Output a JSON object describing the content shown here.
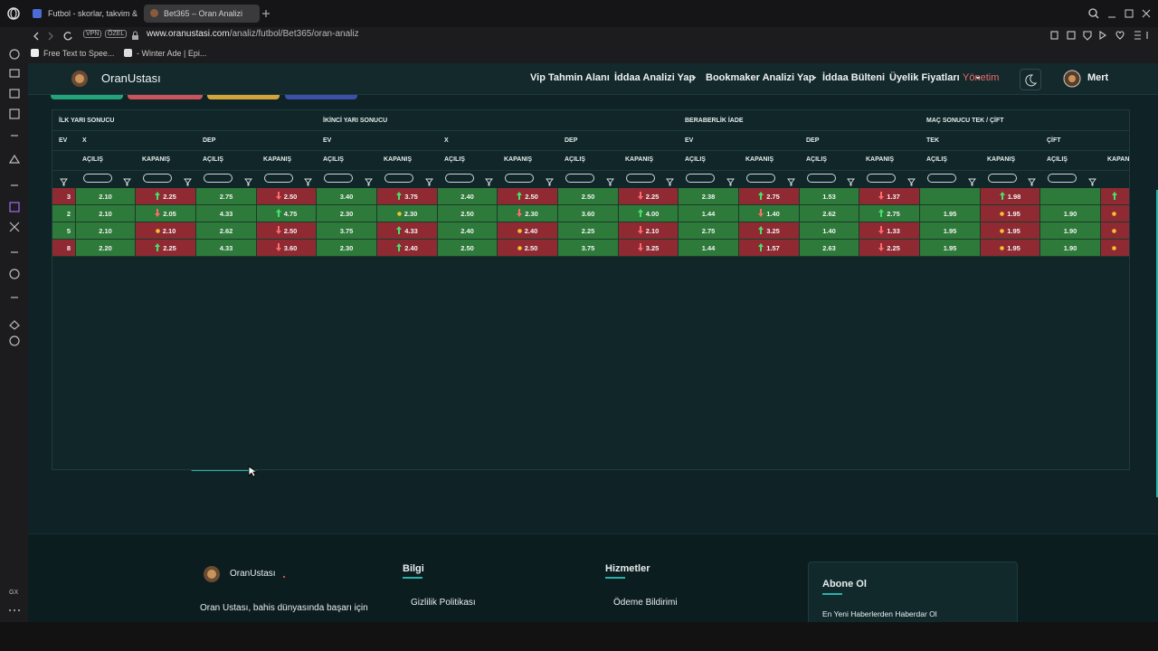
{
  "browser": {
    "tabs": [
      "Futbol - skorlar, takvim &",
      "Bet365 – Oran Analizi"
    ],
    "vpn": "VPN",
    "private": "ÖZEL",
    "url_host": "www.oranustasi.com",
    "url_path": "/analiz/futbol/Bet365/oran-analiz",
    "bookmarks": [
      "Free Text to Spee...",
      "- Winter Ade | Epi..."
    ],
    "sidebar_label": "GX"
  },
  "nav": {
    "brand": "OranUstası",
    "links": [
      "Vip Tahmin Alanı",
      "İddaa Analizi Yap",
      "Bookmaker Analizi Yap",
      "İddaa Bülteni",
      "Üyelik Fiyatları",
      "Yönetim"
    ],
    "user": "Mert"
  },
  "table": {
    "groups": [
      "İLK YARI SONUCU",
      "İKİNCİ YARI SONUCU",
      "BERABERLİK İADE",
      "MAÇ SONUCU TEK / ÇİFT"
    ],
    "subgroups": [
      "EV",
      "X",
      "DEP",
      "EV",
      "X",
      "DEP",
      "EV",
      "DEP",
      "TEK",
      "ÇİFT"
    ],
    "column_labels": [
      "AÇILIŞ",
      "KAPANIŞ",
      "AÇILIŞ",
      "KAPANIŞ",
      "AÇILIŞ",
      "KAPANIŞ",
      "AÇILIŞ",
      "KAPANIŞ",
      "AÇILIŞ",
      "KAPANIŞ",
      "AÇILIŞ",
      "KAPANIŞ",
      "AÇILIŞ",
      "KAPANIŞ",
      "AÇILIŞ",
      "KAPANIŞ",
      "AÇILIŞ",
      "KAPANIŞ"
    ],
    "rows": [
      [
        {
          "text": "3",
          "tone": "red"
        },
        {
          "text": "2.10",
          "tone": "green"
        },
        {
          "text": "2.25",
          "trend": "up",
          "tone": "red"
        },
        {
          "text": "2.75",
          "tone": "green"
        },
        {
          "text": "2.50",
          "trend": "down",
          "tone": "red"
        },
        {
          "text": "3.40",
          "tone": "green"
        },
        {
          "text": "3.75",
          "trend": "up",
          "tone": "red"
        },
        {
          "text": "2.40",
          "tone": "green"
        },
        {
          "text": "2.50",
          "trend": "up",
          "tone": "red"
        },
        {
          "text": "2.50",
          "tone": "green"
        },
        {
          "text": "2.25",
          "trend": "down",
          "tone": "red"
        },
        {
          "text": "2.38",
          "tone": "green"
        },
        {
          "text": "2.75",
          "trend": "up",
          "tone": "red"
        },
        {
          "text": "1.53",
          "tone": "green"
        },
        {
          "text": "1.37",
          "trend": "down",
          "tone": "red"
        },
        {
          "tone": "green"
        },
        {
          "text": "1.98",
          "trend": "up",
          "tone": "red"
        },
        {
          "tone": "green"
        },
        {
          "trend": "up",
          "tone": "red"
        }
      ],
      [
        {
          "text": "2",
          "tone": "green"
        },
        {
          "text": "2.10",
          "tone": "green"
        },
        {
          "text": "2.05",
          "trend": "down",
          "tone": "green"
        },
        {
          "text": "4.33",
          "tone": "green"
        },
        {
          "text": "4.75",
          "trend": "up",
          "tone": "green"
        },
        {
          "text": "2.30",
          "tone": "green"
        },
        {
          "text": "2.30",
          "trend": "flat",
          "tone": "green"
        },
        {
          "text": "2.50",
          "tone": "green"
        },
        {
          "text": "2.30",
          "trend": "down",
          "tone": "green"
        },
        {
          "text": "3.60",
          "tone": "green"
        },
        {
          "text": "4.00",
          "trend": "up",
          "tone": "green"
        },
        {
          "text": "1.44",
          "tone": "green"
        },
        {
          "text": "1.40",
          "trend": "down",
          "tone": "green"
        },
        {
          "text": "2.62",
          "tone": "green"
        },
        {
          "text": "2.75",
          "trend": "up",
          "tone": "green"
        },
        {
          "text": "1.95",
          "tone": "green"
        },
        {
          "text": "1.95",
          "trend": "flat",
          "tone": "red"
        },
        {
          "text": "1.90",
          "tone": "green"
        },
        {
          "trend": "flat",
          "tone": "red"
        }
      ],
      [
        {
          "text": "5",
          "tone": "green"
        },
        {
          "text": "2.10",
          "tone": "green"
        },
        {
          "text": "2.10",
          "trend": "flat",
          "tone": "red"
        },
        {
          "text": "2.62",
          "tone": "green"
        },
        {
          "text": "2.50",
          "trend": "down",
          "tone": "red"
        },
        {
          "text": "3.75",
          "tone": "green"
        },
        {
          "text": "4.33",
          "trend": "up",
          "tone": "red"
        },
        {
          "text": "2.40",
          "tone": "green"
        },
        {
          "text": "2.40",
          "trend": "flat",
          "tone": "red"
        },
        {
          "text": "2.25",
          "tone": "green"
        },
        {
          "text": "2.10",
          "trend": "down",
          "tone": "red"
        },
        {
          "text": "2.75",
          "tone": "green"
        },
        {
          "text": "3.25",
          "trend": "up",
          "tone": "red"
        },
        {
          "text": "1.40",
          "tone": "green"
        },
        {
          "text": "1.33",
          "trend": "down",
          "tone": "red"
        },
        {
          "text": "1.95",
          "tone": "green"
        },
        {
          "text": "1.95",
          "trend": "flat",
          "tone": "red"
        },
        {
          "text": "1.90",
          "tone": "green"
        },
        {
          "trend": "flat",
          "tone": "red"
        }
      ],
      [
        {
          "text": "8",
          "tone": "red"
        },
        {
          "text": "2.20",
          "tone": "green"
        },
        {
          "text": "2.25",
          "trend": "up",
          "tone": "red"
        },
        {
          "text": "4.33",
          "tone": "green"
        },
        {
          "text": "3.60",
          "trend": "down",
          "tone": "red"
        },
        {
          "text": "2.30",
          "tone": "green"
        },
        {
          "text": "2.40",
          "trend": "up",
          "tone": "red"
        },
        {
          "text": "2.50",
          "tone": "green"
        },
        {
          "text": "2.50",
          "trend": "flat",
          "tone": "red"
        },
        {
          "text": "3.75",
          "tone": "green"
        },
        {
          "text": "3.25",
          "trend": "down",
          "tone": "red"
        },
        {
          "text": "1.44",
          "tone": "green"
        },
        {
          "text": "1.57",
          "trend": "up",
          "tone": "red"
        },
        {
          "text": "2.63",
          "tone": "green"
        },
        {
          "text": "2.25",
          "trend": "down",
          "tone": "red"
        },
        {
          "text": "1.95",
          "tone": "green"
        },
        {
          "text": "1.95",
          "trend": "flat",
          "tone": "red"
        },
        {
          "text": "1.90",
          "tone": "green"
        },
        {
          "trend": "flat",
          "tone": "red"
        }
      ]
    ]
  },
  "footer": {
    "brand": "OranUstası",
    "about": "Oran Ustası, bahis dünyasında başarı için",
    "sections": [
      {
        "title": "Bilgi",
        "links": [
          "Gizlilik Politikası"
        ]
      },
      {
        "title": "Hizmetler",
        "links": [
          "Ödeme Bildirimi"
        ]
      }
    ],
    "subscribe": {
      "title": "Abone Ol",
      "subtitle": "En Yeni Haberlerden Haberdar Ol"
    }
  }
}
